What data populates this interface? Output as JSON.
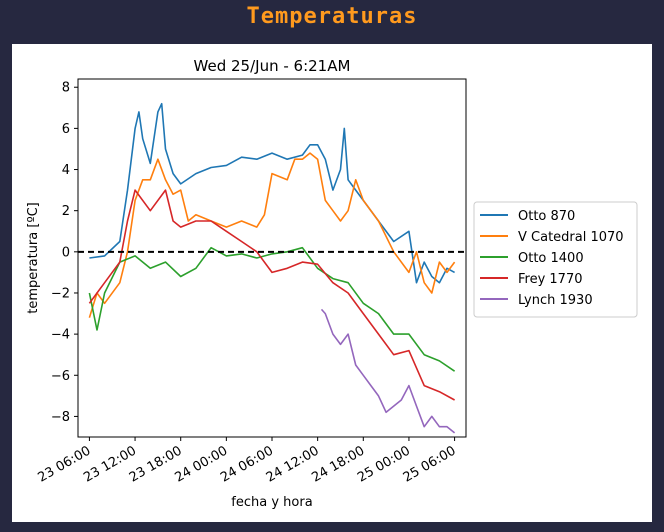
{
  "header": {
    "title": "Temperaturas"
  },
  "colors": {
    "header_bg": "#262840",
    "title": "#ff9a1e"
  },
  "chart_data": {
    "type": "line",
    "title": "Wed 25/Jun - 6:21AM",
    "xlabel": "fecha y hora",
    "ylabel": "temperatura [ºC]",
    "ylim": [
      -9.0,
      8.4
    ],
    "yticks": [
      8,
      6,
      4,
      2,
      0,
      -2,
      -4,
      -6,
      -8
    ],
    "ytick_labels": [
      "8",
      "6",
      "4",
      "2",
      "0",
      "−2",
      "−4",
      "−6",
      "−8"
    ],
    "xlim": [
      "2025-06-23 04:30",
      "2025-06-25 07:30"
    ],
    "xticks": [
      "2025-06-23 06:00",
      "2025-06-23 12:00",
      "2025-06-23 18:00",
      "2025-06-24 00:00",
      "2025-06-24 06:00",
      "2025-06-24 12:00",
      "2025-06-24 18:00",
      "2025-06-25 00:00",
      "2025-06-25 06:00"
    ],
    "xtick_labels": [
      "23 06:00",
      "23 12:00",
      "23 18:00",
      "24 00:00",
      "24 06:00",
      "24 12:00",
      "24 18:00",
      "25 00:00",
      "25 06:00"
    ],
    "hline": {
      "y": 0,
      "style": "dashed",
      "color": "#000000"
    },
    "grid": false,
    "legend": "right",
    "series": [
      {
        "name": "Otto 870",
        "color": "#1f77b4",
        "x": [
          "2025-06-23 06:00",
          "2025-06-23 08:00",
          "2025-06-23 10:00",
          "2025-06-23 11:00",
          "2025-06-23 12:00",
          "2025-06-23 12:30",
          "2025-06-23 13:00",
          "2025-06-23 14:00",
          "2025-06-23 15:00",
          "2025-06-23 15:30",
          "2025-06-23 16:00",
          "2025-06-23 17:00",
          "2025-06-23 18:00",
          "2025-06-23 20:00",
          "2025-06-23 22:00",
          "2025-06-24 00:00",
          "2025-06-24 02:00",
          "2025-06-24 04:00",
          "2025-06-24 06:00",
          "2025-06-24 08:00",
          "2025-06-24 10:00",
          "2025-06-24 11:00",
          "2025-06-24 12:00",
          "2025-06-24 13:00",
          "2025-06-24 14:00",
          "2025-06-24 15:00",
          "2025-06-24 15:30",
          "2025-06-24 16:00",
          "2025-06-24 17:00",
          "2025-06-24 18:00",
          "2025-06-24 20:00",
          "2025-06-24 22:00",
          "2025-06-25 00:00",
          "2025-06-25 01:00",
          "2025-06-25 02:00",
          "2025-06-25 03:00",
          "2025-06-25 04:00",
          "2025-06-25 05:00",
          "2025-06-25 06:00"
        ],
        "y": [
          -0.3,
          -0.2,
          0.5,
          3.0,
          6.0,
          6.8,
          5.5,
          4.3,
          6.8,
          7.2,
          5.0,
          3.8,
          3.3,
          3.8,
          4.1,
          4.2,
          4.6,
          4.5,
          4.8,
          4.5,
          4.7,
          5.2,
          5.2,
          4.5,
          3.0,
          4.0,
          6.0,
          3.5,
          3.0,
          2.5,
          1.5,
          0.5,
          1.0,
          -1.5,
          -0.5,
          -1.2,
          -1.5,
          -0.8,
          -1.0
        ]
      },
      {
        "name": "V Catedral 1070",
        "color": "#ff7f0e",
        "x": [
          "2025-06-23 06:00",
          "2025-06-23 07:00",
          "2025-06-23 08:00",
          "2025-06-23 10:00",
          "2025-06-23 11:00",
          "2025-06-23 12:00",
          "2025-06-23 13:00",
          "2025-06-23 14:00",
          "2025-06-23 15:00",
          "2025-06-23 16:00",
          "2025-06-23 17:00",
          "2025-06-23 18:00",
          "2025-06-23 19:00",
          "2025-06-23 20:00",
          "2025-06-23 22:00",
          "2025-06-24 00:00",
          "2025-06-24 02:00",
          "2025-06-24 04:00",
          "2025-06-24 05:00",
          "2025-06-24 06:00",
          "2025-06-24 08:00",
          "2025-06-24 09:00",
          "2025-06-24 10:00",
          "2025-06-24 11:00",
          "2025-06-24 12:00",
          "2025-06-24 13:00",
          "2025-06-24 14:00",
          "2025-06-24 15:00",
          "2025-06-24 16:00",
          "2025-06-24 17:00",
          "2025-06-24 18:00",
          "2025-06-24 20:00",
          "2025-06-24 22:00",
          "2025-06-25 00:00",
          "2025-06-25 01:00",
          "2025-06-25 02:00",
          "2025-06-25 03:00",
          "2025-06-25 04:00",
          "2025-06-25 05:00",
          "2025-06-25 06:00"
        ],
        "y": [
          -3.2,
          -2.0,
          -2.5,
          -1.5,
          0.0,
          2.5,
          3.5,
          3.5,
          4.5,
          3.5,
          2.8,
          3.0,
          1.5,
          1.8,
          1.5,
          1.2,
          1.5,
          1.2,
          1.8,
          3.8,
          3.5,
          4.5,
          4.5,
          4.8,
          4.5,
          2.5,
          2.0,
          1.5,
          2.0,
          3.5,
          2.5,
          1.5,
          0.0,
          -1.0,
          0.0,
          -1.5,
          -2.0,
          -0.5,
          -1.0,
          -0.5
        ]
      },
      {
        "name": "Otto 1400",
        "color": "#2ca02c",
        "x": [
          "2025-06-23 06:00",
          "2025-06-23 07:00",
          "2025-06-23 08:00",
          "2025-06-23 10:00",
          "2025-06-23 12:00",
          "2025-06-23 14:00",
          "2025-06-23 16:00",
          "2025-06-23 18:00",
          "2025-06-23 20:00",
          "2025-06-23 22:00",
          "2025-06-24 00:00",
          "2025-06-24 02:00",
          "2025-06-24 04:00",
          "2025-06-24 06:00",
          "2025-06-24 08:00",
          "2025-06-24 10:00",
          "2025-06-24 12:00",
          "2025-06-24 14:00",
          "2025-06-24 16:00",
          "2025-06-24 18:00",
          "2025-06-24 20:00",
          "2025-06-24 22:00",
          "2025-06-25 00:00",
          "2025-06-25 02:00",
          "2025-06-25 04:00",
          "2025-06-25 06:00"
        ],
        "y": [
          -2.0,
          -3.8,
          -2.0,
          -0.5,
          -0.2,
          -0.8,
          -0.5,
          -1.2,
          -0.8,
          0.2,
          -0.2,
          -0.1,
          -0.3,
          -0.1,
          0.0,
          0.2,
          -0.8,
          -1.3,
          -1.5,
          -2.5,
          -3.0,
          -4.0,
          -4.0,
          -5.0,
          -5.3,
          -5.8
        ]
      },
      {
        "name": "Frey 1770",
        "color": "#d62728",
        "x": [
          "2025-06-23 06:00",
          "2025-06-23 07:00",
          "2025-06-23 08:00",
          "2025-06-23 10:00",
          "2025-06-23 11:00",
          "2025-06-23 12:00",
          "2025-06-23 14:00",
          "2025-06-23 16:00",
          "2025-06-23 17:00",
          "2025-06-23 18:00",
          "2025-06-23 20:00",
          "2025-06-23 22:00",
          "2025-06-24 00:00",
          "2025-06-24 02:00",
          "2025-06-24 04:00",
          "2025-06-24 06:00",
          "2025-06-24 08:00",
          "2025-06-24 10:00",
          "2025-06-24 12:00",
          "2025-06-24 14:00",
          "2025-06-24 16:00",
          "2025-06-24 18:00",
          "2025-06-24 20:00",
          "2025-06-24 22:00",
          "2025-06-25 00:00",
          "2025-06-25 02:00",
          "2025-06-25 04:00",
          "2025-06-25 06:00"
        ],
        "y": [
          -2.5,
          -2.0,
          -1.5,
          -0.5,
          1.5,
          3.0,
          2.0,
          3.0,
          1.5,
          1.2,
          1.5,
          1.5,
          1.0,
          0.5,
          0.0,
          -1.0,
          -0.8,
          -0.5,
          -0.6,
          -1.5,
          -2.0,
          -3.0,
          -4.0,
          -5.0,
          -4.8,
          -6.5,
          -6.8,
          -7.2
        ]
      },
      {
        "name": "Lynch 1930",
        "color": "#9467bd",
        "x": [
          "2025-06-24 12:30",
          "2025-06-24 13:00",
          "2025-06-24 14:00",
          "2025-06-24 15:00",
          "2025-06-24 16:00",
          "2025-06-24 17:00",
          "2025-06-24 18:00",
          "2025-06-24 19:00",
          "2025-06-24 20:00",
          "2025-06-24 21:00",
          "2025-06-24 22:00",
          "2025-06-24 23:00",
          "2025-06-25 00:00",
          "2025-06-25 01:00",
          "2025-06-25 02:00",
          "2025-06-25 03:00",
          "2025-06-25 04:00",
          "2025-06-25 05:00",
          "2025-06-25 06:00"
        ],
        "y": [
          -2.8,
          -3.0,
          -4.0,
          -4.5,
          -4.0,
          -5.5,
          -6.0,
          -6.5,
          -7.0,
          -7.8,
          -7.5,
          -7.2,
          -6.5,
          -7.5,
          -8.5,
          -8.0,
          -8.5,
          -8.5,
          -8.8
        ]
      }
    ]
  }
}
